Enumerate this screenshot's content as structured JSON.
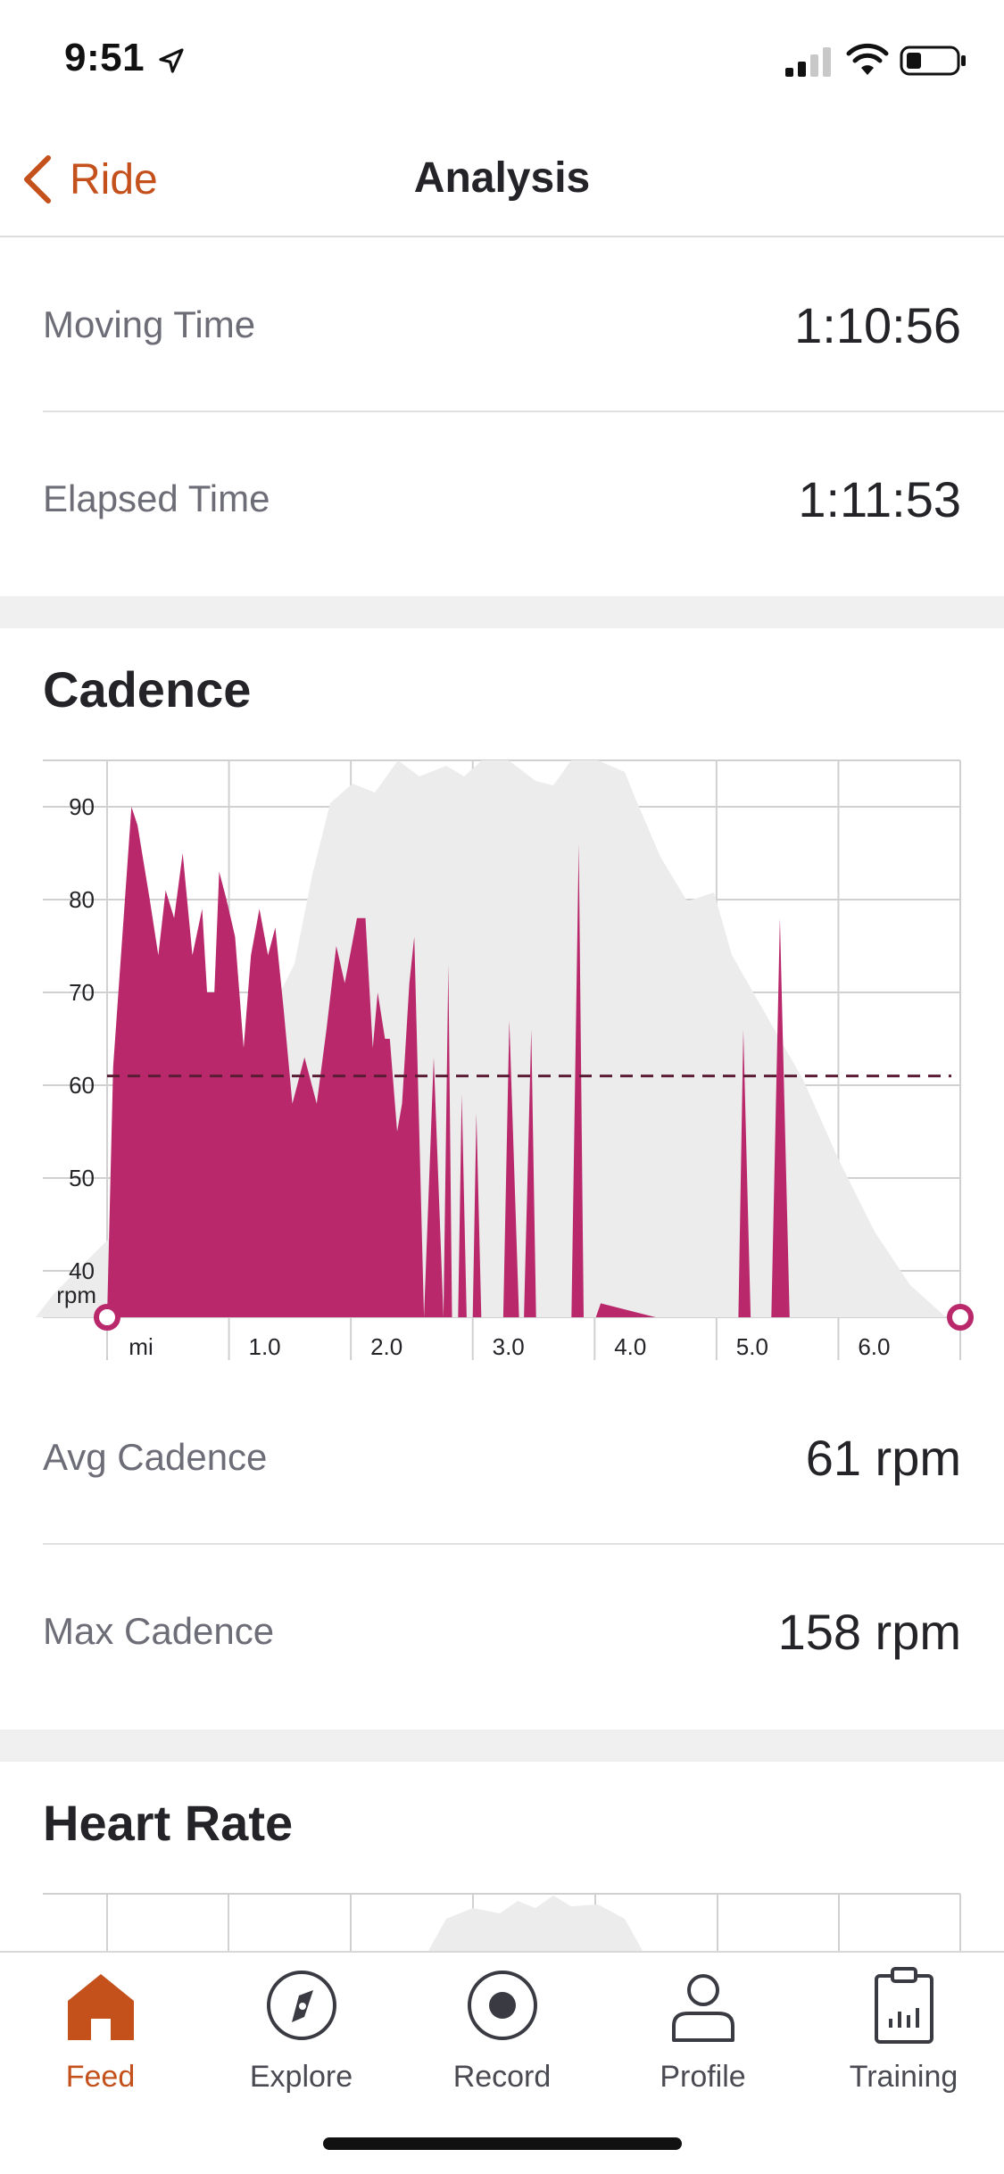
{
  "status_bar": {
    "time": "9:51"
  },
  "nav": {
    "back_label": "Ride",
    "title": "Analysis"
  },
  "stats_top": [
    {
      "label": "Moving Time",
      "value": "1:10:56"
    },
    {
      "label": "Elapsed Time",
      "value": "1:11:53"
    }
  ],
  "cadence": {
    "title": "Cadence",
    "stats": [
      {
        "label": "Avg Cadence",
        "value": "61 rpm"
      },
      {
        "label": "Max Cadence",
        "value": "158 rpm"
      }
    ]
  },
  "chart_data": {
    "type": "area",
    "title": "",
    "ylabel": "rpm",
    "xlabel": "mi",
    "x_ticks": [
      "1.0",
      "2.0",
      "3.0",
      "4.0",
      "5.0",
      "6.0"
    ],
    "y_ticks": [
      "40",
      "50",
      "60",
      "70",
      "80",
      "90"
    ],
    "ylim": [
      35,
      95
    ],
    "xlim": [
      0,
      7
    ],
    "average": 61,
    "colors": {
      "cadence": "#b8286b",
      "elevation": "#ececec",
      "average_line": "#5a1c34"
    },
    "series": [
      {
        "x": [
          0.0,
          0.05,
          0.2,
          0.25,
          0.35,
          0.42,
          0.48,
          0.55,
          0.62,
          0.7,
          0.78,
          0.82,
          0.88,
          0.92,
          0.98,
          1.05,
          1.12,
          1.18,
          1.25,
          1.32,
          1.38,
          1.45,
          1.52,
          1.62,
          1.66,
          1.72,
          1.8,
          1.88,
          1.95,
          2.05,
          2.12,
          2.18,
          2.22,
          2.28,
          2.32,
          2.38,
          2.42,
          2.48,
          2.52,
          2.6,
          2.68,
          2.76,
          2.8,
          2.83,
          2.88,
          2.91,
          2.95,
          3.0,
          3.03,
          3.07,
          3.1,
          3.25,
          3.3,
          3.38,
          3.42,
          3.48,
          3.52,
          3.68,
          3.72,
          3.76,
          3.81,
          3.87,
          3.91,
          3.96,
          4.01,
          4.05,
          4.5,
          4.55,
          4.6,
          4.64,
          5.18,
          5.22,
          5.28,
          5.45,
          5.52,
          5.6,
          5.66,
          5.7,
          5.74,
          5.8,
          5.95,
          6.0,
          6.05,
          6.22,
          6.27,
          6.32,
          6.5,
          6.54,
          6.6,
          7.0
        ],
        "y": [
          35,
          62,
          90,
          88,
          80,
          74,
          81,
          78,
          85,
          74,
          79,
          70,
          70,
          83,
          80,
          76,
          64,
          74,
          79,
          74,
          77,
          68,
          58,
          63,
          61,
          58,
          66,
          75,
          71,
          78,
          78,
          64,
          70,
          65,
          65,
          55,
          58,
          71,
          76,
          35,
          63,
          35,
          73,
          35,
          35,
          59,
          35,
          35,
          57,
          35,
          35,
          35,
          67,
          35,
          35,
          66,
          35,
          35,
          1,
          35,
          35,
          86,
          35,
          35,
          35,
          36.5,
          35,
          35,
          35,
          35,
          35,
          66,
          35,
          35,
          78,
          35,
          35,
          35,
          35,
          35,
          35,
          35,
          35,
          35,
          35,
          35,
          35,
          35,
          35,
          35
        ]
      }
    ]
  },
  "heart_rate": {
    "title": "Heart Rate"
  },
  "tabs": [
    {
      "label": "Feed",
      "icon": "home-icon"
    },
    {
      "label": "Explore",
      "icon": "compass-icon"
    },
    {
      "label": "Record",
      "icon": "record-icon"
    },
    {
      "label": "Profile",
      "icon": "person-icon"
    },
    {
      "label": "Training",
      "icon": "clipboard-icon"
    }
  ]
}
